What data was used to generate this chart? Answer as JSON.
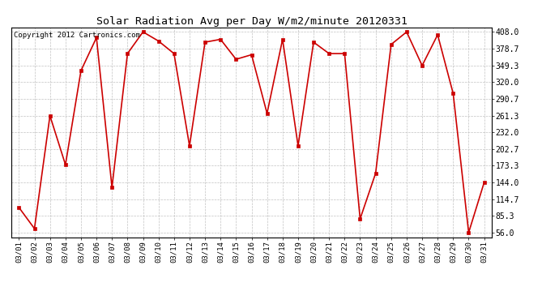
{
  "title": "Solar Radiation Avg per Day W/m2/minute 20120331",
  "copyright": "Copyright 2012 Cartronics.com",
  "dates": [
    "03/01",
    "03/02",
    "03/03",
    "03/04",
    "03/05",
    "03/06",
    "03/07",
    "03/08",
    "03/09",
    "03/10",
    "03/11",
    "03/12",
    "03/13",
    "03/14",
    "03/15",
    "03/16",
    "03/17",
    "03/18",
    "03/19",
    "03/20",
    "03/21",
    "03/22",
    "03/23",
    "03/24",
    "03/25",
    "03/26",
    "03/27",
    "03/28",
    "03/29",
    "03/30",
    "03/31"
  ],
  "values": [
    100,
    63,
    261,
    175,
    340,
    398,
    135,
    370,
    408,
    392,
    370,
    208,
    390,
    395,
    360,
    368,
    265,
    395,
    208,
    390,
    370,
    370,
    80,
    160,
    386,
    408,
    349,
    403,
    300,
    56,
    144
  ],
  "y_ticks": [
    56.0,
    85.3,
    114.7,
    144.0,
    173.3,
    202.7,
    232.0,
    261.3,
    290.7,
    320.0,
    349.3,
    378.7,
    408.0
  ],
  "line_color": "#cc0000",
  "marker_color": "#cc0000",
  "bg_color": "#ffffff",
  "grid_color": "#bbbbbb",
  "title_fontsize": 10,
  "copyright_fontsize": 6.5
}
